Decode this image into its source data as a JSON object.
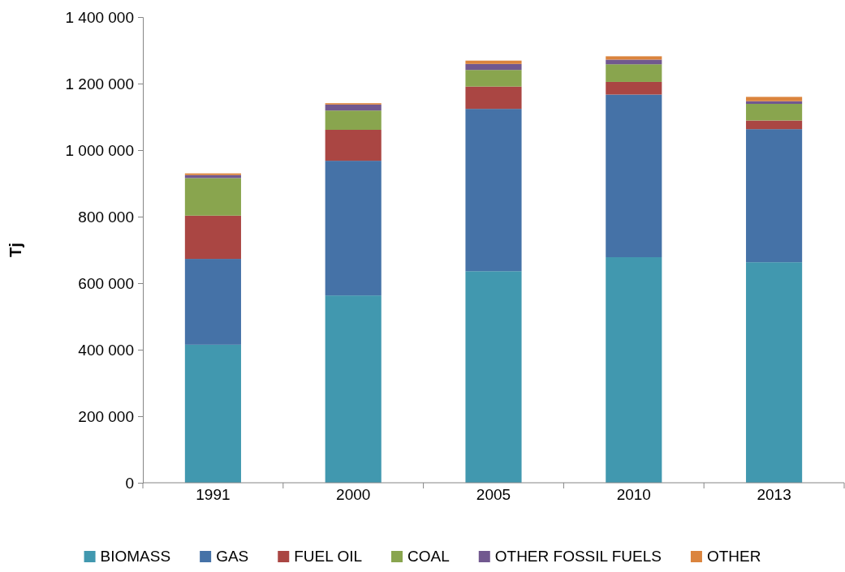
{
  "chart_data": {
    "type": "bar",
    "stacked": true,
    "ylabel": "Tj",
    "categories": [
      "1991",
      "2000",
      "2005",
      "2010",
      "2013"
    ],
    "ylim": [
      0,
      1400000
    ],
    "yticks": [
      {
        "value": 0,
        "label": "0"
      },
      {
        "value": 200000,
        "label": "200 000"
      },
      {
        "value": 400000,
        "label": "400 000"
      },
      {
        "value": 600000,
        "label": "600 000"
      },
      {
        "value": 800000,
        "label": "800 000"
      },
      {
        "value": 1000000,
        "label": "1 000 000"
      },
      {
        "value": 1200000,
        "label": "1 200 000"
      },
      {
        "value": 1400000,
        "label": "1 400 000"
      }
    ],
    "legend": "bottom",
    "series": [
      {
        "name": "BIOMASS",
        "color": "#4198af",
        "values": [
          415000,
          563000,
          636000,
          678000,
          663000
        ]
      },
      {
        "name": "GAS",
        "color": "#4572a7",
        "values": [
          258000,
          405000,
          488000,
          489000,
          400000
        ]
      },
      {
        "name": "FUEL OIL",
        "color": "#aa4643",
        "values": [
          130000,
          93000,
          67000,
          38000,
          26000
        ]
      },
      {
        "name": "COAL",
        "color": "#89a54e",
        "values": [
          113000,
          58000,
          50000,
          53000,
          50000
        ]
      },
      {
        "name": "OTHER FOSSIL FUELS",
        "color": "#71588f",
        "values": [
          9000,
          18000,
          18000,
          14000,
          8000
        ]
      },
      {
        "name": "OTHER",
        "color": "#db843d",
        "values": [
          5000,
          4000,
          10000,
          10000,
          13000
        ]
      }
    ]
  }
}
